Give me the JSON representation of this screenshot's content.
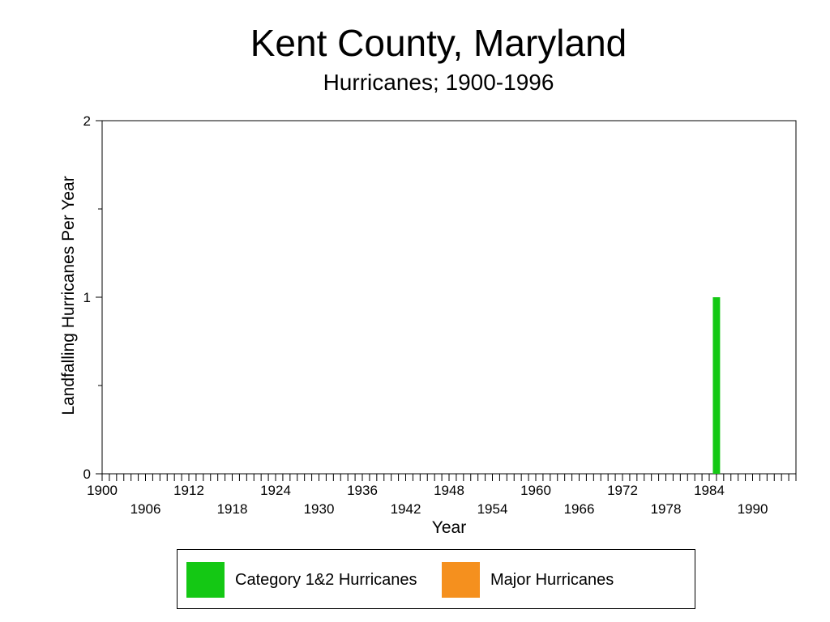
{
  "chart_data": {
    "type": "bar",
    "title": "Kent County, Maryland",
    "subtitle": "Hurricanes;  1900-1996",
    "xlabel": "Year",
    "ylabel": "Landfalling Hurricanes Per Year",
    "xlim": [
      1900,
      1996
    ],
    "ylim": [
      0,
      2
    ],
    "x_ticks_upper": [
      "1900",
      "1912",
      "1924",
      "1936",
      "1948",
      "1960",
      "1972",
      "1984"
    ],
    "x_ticks_lower": [
      "1906",
      "1918",
      "1930",
      "1942",
      "1954",
      "1966",
      "1978",
      "1990"
    ],
    "y_ticks": [
      "0",
      "1",
      "2"
    ],
    "legend_placement": "bottom",
    "grid": false,
    "series": [
      {
        "name": "Category 1&2 Hurricanes",
        "color": "#14c814",
        "values": [
          {
            "x": 1985,
            "y": 1
          }
        ]
      },
      {
        "name": "Major Hurricanes",
        "color": "#f5901e",
        "values": []
      }
    ]
  }
}
